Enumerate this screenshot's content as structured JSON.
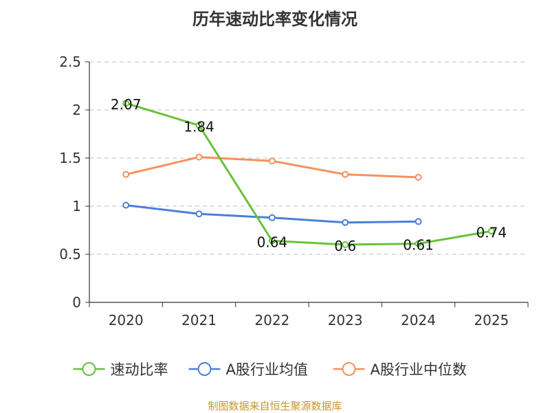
{
  "chart_data": {
    "type": "line",
    "title": "历年速动比率变化情况",
    "categories": [
      "2020",
      "2021",
      "2022",
      "2023",
      "2024",
      "2025"
    ],
    "ylim": [
      0,
      2.5
    ],
    "yticks": [
      "0",
      "0.5",
      "1",
      "1.5",
      "2",
      "2.5"
    ],
    "grid": true,
    "legend_position": "bottom",
    "series": [
      {
        "name": "速动比率",
        "color": "#67c23a",
        "values": [
          2.07,
          1.84,
          0.64,
          0.6,
          0.61,
          0.74
        ],
        "labels": [
          "2.07",
          "1.84",
          "0.64",
          "0.6",
          "0.61",
          "0.74"
        ]
      },
      {
        "name": "A股行业均值",
        "color": "#4a7fd8",
        "values": [
          1.01,
          0.92,
          0.88,
          0.83,
          0.84,
          null
        ]
      },
      {
        "name": "A股行业中位数",
        "color": "#f6905e",
        "values": [
          1.33,
          1.51,
          1.47,
          1.33,
          1.3,
          null
        ]
      }
    ]
  },
  "footer": {
    "source": "制图数据来自恒生聚源数据库"
  }
}
